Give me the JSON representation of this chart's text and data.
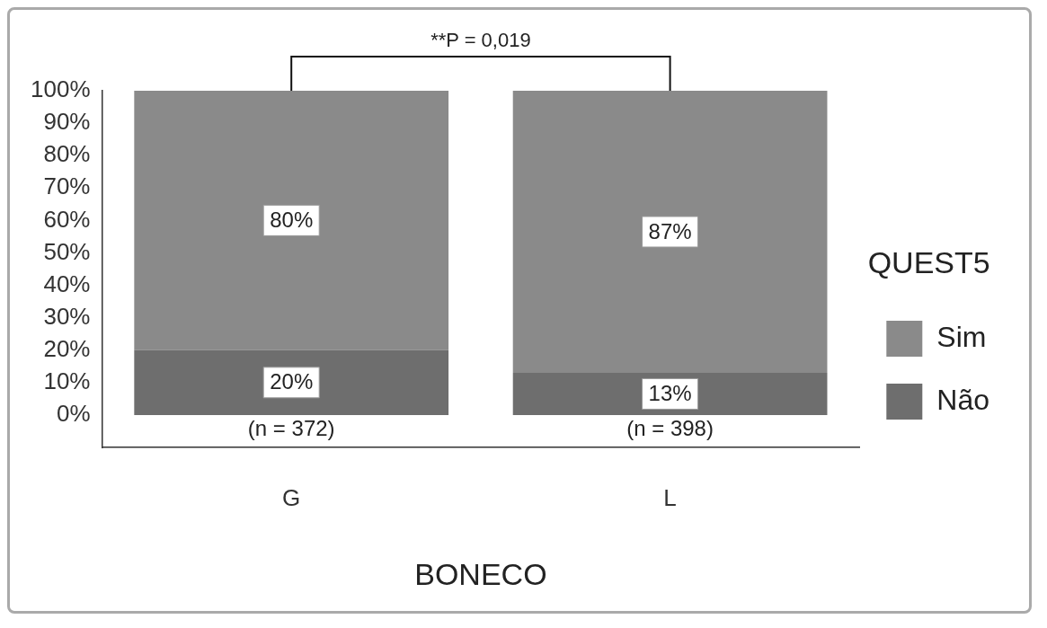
{
  "chart_data": {
    "type": "bar",
    "stacked": true,
    "xlabel": "BONECO",
    "legend_title": "QUEST5",
    "legend": "right",
    "categories": [
      "G",
      "L"
    ],
    "series": [
      {
        "name": "Não",
        "color": "#6e6e6e",
        "values": [
          20,
          13
        ],
        "value_labels": [
          "20%",
          "13%"
        ]
      },
      {
        "name": "Sim",
        "color": "#8a8a8a",
        "values": [
          80,
          87
        ],
        "value_labels": [
          "80%",
          "87%"
        ]
      }
    ],
    "ylim": [
      -10,
      100
    ],
    "yticks": [
      {
        "value": 0,
        "label": "0%"
      },
      {
        "value": 10,
        "label": "10%"
      },
      {
        "value": 20,
        "label": "20%"
      },
      {
        "value": 30,
        "label": "30%"
      },
      {
        "value": 40,
        "label": "40%"
      },
      {
        "value": 50,
        "label": "50%"
      },
      {
        "value": 60,
        "label": "60%"
      },
      {
        "value": 70,
        "label": "70%"
      },
      {
        "value": 80,
        "label": "80%"
      },
      {
        "value": 90,
        "label": "90%"
      },
      {
        "value": 100,
        "label": "100%"
      }
    ],
    "annotations": [
      "**P = 0,019",
      "(n = 372)",
      "(n = 398)"
    ]
  }
}
